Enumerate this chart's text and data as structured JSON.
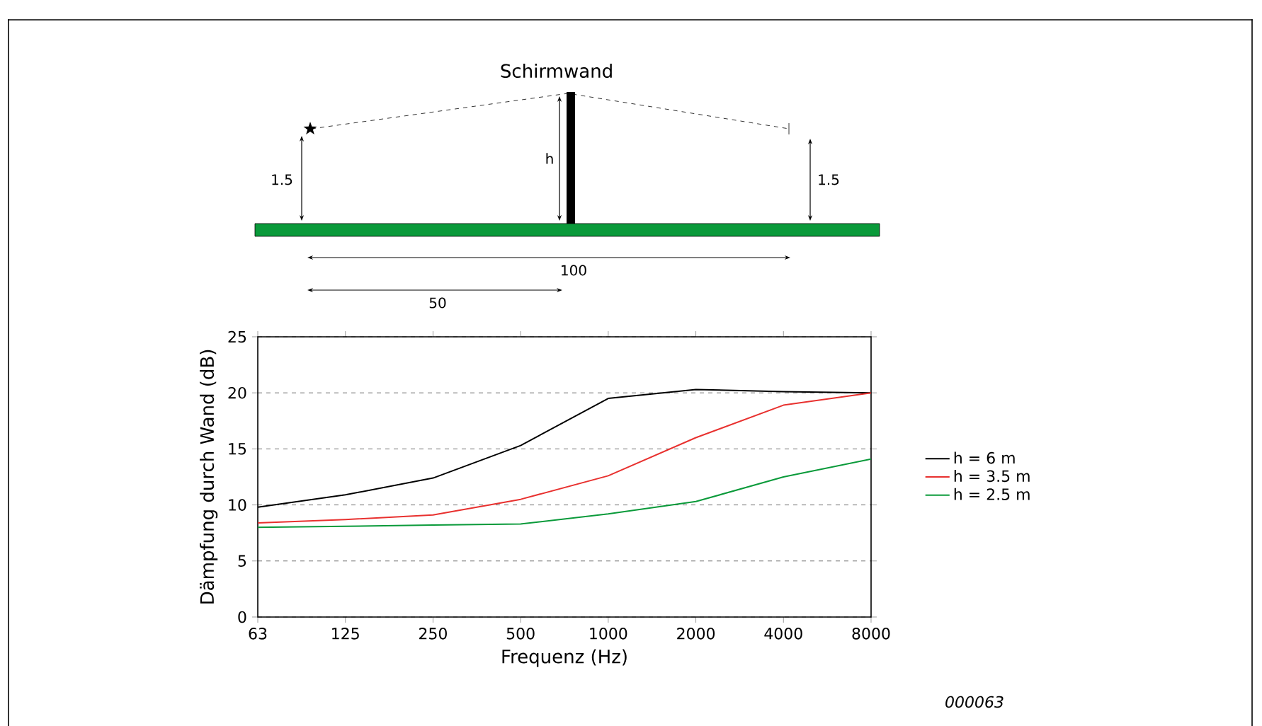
{
  "chart_data": {
    "type": "line",
    "xlabel": "Frequenz (Hz)",
    "ylabel": "Dämpfung durch Wand (dB)",
    "categories": [
      "63",
      "125",
      "250",
      "500",
      "1000",
      "2000",
      "4000",
      "8000"
    ],
    "series": [
      {
        "name": "h = 6 m",
        "color": "#000000",
        "values": [
          9.8,
          10.9,
          12.4,
          15.3,
          19.5,
          20.3,
          20.1,
          20.0
        ]
      },
      {
        "name": "h = 3.5 m",
        "color": "#e8312f",
        "values": [
          8.4,
          8.7,
          9.1,
          10.5,
          12.6,
          16.0,
          18.9,
          20.0
        ]
      },
      {
        "name": "h = 2.5 m",
        "color": "#0a9a3a",
        "values": [
          8.0,
          8.1,
          8.2,
          8.3,
          9.2,
          10.3,
          12.5,
          14.1
        ]
      }
    ],
    "ylim": [
      0,
      25
    ],
    "yticks": [
      0,
      5,
      10,
      15,
      20,
      25
    ],
    "grid": "y",
    "legend": "right",
    "marker": "none",
    "line_style": "solid",
    "annotations": [
      "Schirmwand",
      "h",
      "1.5",
      "1.5",
      "100",
      "50",
      "000063"
    ]
  }
}
